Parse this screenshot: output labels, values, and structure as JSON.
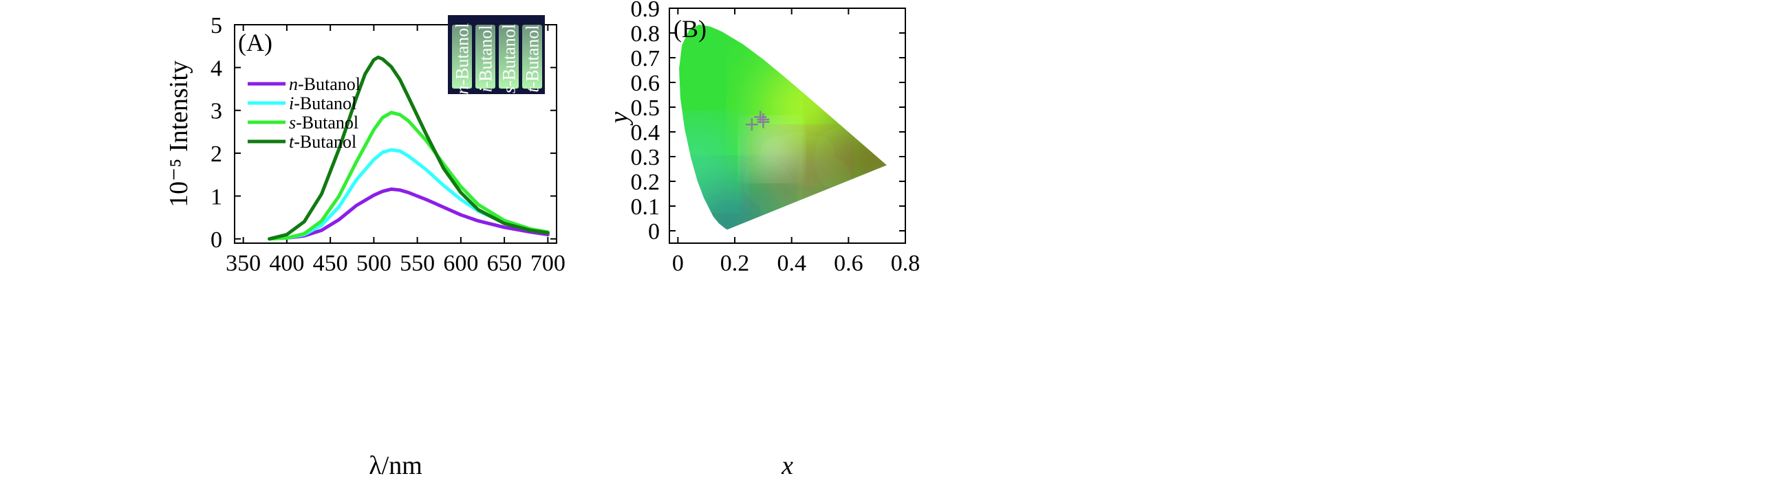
{
  "chart_data": [
    {
      "panel": "(A)",
      "type": "line",
      "xlabel": "λ/nm",
      "ylabel": "10⁻⁵ Intensity",
      "xlim": [
        340,
        710
      ],
      "ylim": [
        -0.1,
        5
      ],
      "xticks": [
        350,
        400,
        450,
        500,
        550,
        600,
        650,
        700
      ],
      "yticks": [
        0,
        1,
        2,
        3,
        4,
        5
      ],
      "legend_position": "top-left",
      "series": [
        {
          "name": "n-Butanol",
          "legend_prefix": "n",
          "legend_suffix": "-Butanol",
          "color": "#8b1fe6",
          "x": [
            400,
            420,
            440,
            460,
            480,
            500,
            510,
            520,
            530,
            540,
            560,
            580,
            600,
            620,
            650,
            680,
            700
          ],
          "y": [
            0.02,
            0.07,
            0.2,
            0.45,
            0.78,
            1.02,
            1.11,
            1.16,
            1.14,
            1.08,
            0.92,
            0.74,
            0.56,
            0.42,
            0.27,
            0.16,
            0.1
          ]
        },
        {
          "name": "i-Butanol",
          "legend_prefix": "i",
          "legend_suffix": "-Butanol",
          "color": "#33ffff",
          "x": [
            400,
            420,
            440,
            460,
            480,
            500,
            510,
            520,
            530,
            540,
            560,
            580,
            600,
            620,
            650,
            680,
            700
          ],
          "y": [
            0.02,
            0.1,
            0.32,
            0.75,
            1.38,
            1.85,
            2.02,
            2.08,
            2.05,
            1.93,
            1.62,
            1.25,
            0.92,
            0.65,
            0.38,
            0.21,
            0.14
          ]
        },
        {
          "name": "s-Butanol",
          "legend_prefix": "s",
          "legend_suffix": "-Butanol",
          "color": "#33ee33",
          "x": [
            380,
            400,
            420,
            440,
            460,
            480,
            500,
            510,
            520,
            530,
            540,
            560,
            580,
            600,
            620,
            650,
            680,
            700
          ],
          "y": [
            0.0,
            0.02,
            0.12,
            0.42,
            1.0,
            1.8,
            2.55,
            2.83,
            2.95,
            2.9,
            2.75,
            2.3,
            1.75,
            1.22,
            0.8,
            0.43,
            0.23,
            0.16
          ]
        },
        {
          "name": "t-Butanol",
          "legend_prefix": "t",
          "legend_suffix": "-Butanol",
          "color": "#117a11",
          "x": [
            380,
            400,
            420,
            440,
            460,
            480,
            490,
            500,
            505,
            510,
            520,
            530,
            540,
            560,
            580,
            600,
            620,
            650,
            680,
            700
          ],
          "y": [
            0.0,
            0.1,
            0.4,
            1.05,
            2.1,
            3.3,
            3.85,
            4.18,
            4.24,
            4.2,
            4.02,
            3.72,
            3.3,
            2.45,
            1.65,
            1.08,
            0.68,
            0.36,
            0.2,
            0.14
          ]
        }
      ],
      "inset": {
        "vials": [
          {
            "prefix": "n",
            "suffix": "-Butanol"
          },
          {
            "prefix": "i",
            "suffix": "-Butanol"
          },
          {
            "prefix": "s",
            "suffix": "-Butanol"
          },
          {
            "prefix": "t",
            "suffix": "-Butanol"
          }
        ],
        "glow_color": "#b9ffb4",
        "background_color": "#12153a"
      }
    },
    {
      "panel": "(B)",
      "type": "scatter",
      "xlabel": "x",
      "ylabel": "y",
      "xlim": [
        -0.03,
        0.8
      ],
      "ylim": [
        -0.05,
        0.9
      ],
      "xticks": [
        0,
        0.2,
        0.4,
        0.6,
        0.8
      ],
      "yticks": [
        0,
        0.1,
        0.2,
        0.3,
        0.4,
        0.5,
        0.6,
        0.7,
        0.8,
        0.9
      ],
      "xtick_labels": [
        "0",
        "0.2",
        "0.4",
        "0.6",
        "0.8"
      ],
      "ytick_labels": [
        "0",
        "0.1",
        "0.2",
        "0.3",
        "0.4",
        "0.5",
        "0.6",
        "0.7",
        "0.8",
        "0.9"
      ],
      "marker": "+",
      "marker_color": "#8a7f9c",
      "points": [
        {
          "x": 0.26,
          "y": 0.43
        },
        {
          "x": 0.29,
          "y": 0.46
        },
        {
          "x": 0.3,
          "y": 0.45
        },
        {
          "x": 0.3,
          "y": 0.44
        }
      ],
      "gamut_colors": {
        "green": "#35e03a",
        "yellow": "#eeff22",
        "red": "#b81c1c",
        "blue": "#2a3fd0",
        "cyan": "#4fd7ff",
        "magenta": "#f0207a",
        "white": "#ffffff"
      }
    }
  ]
}
